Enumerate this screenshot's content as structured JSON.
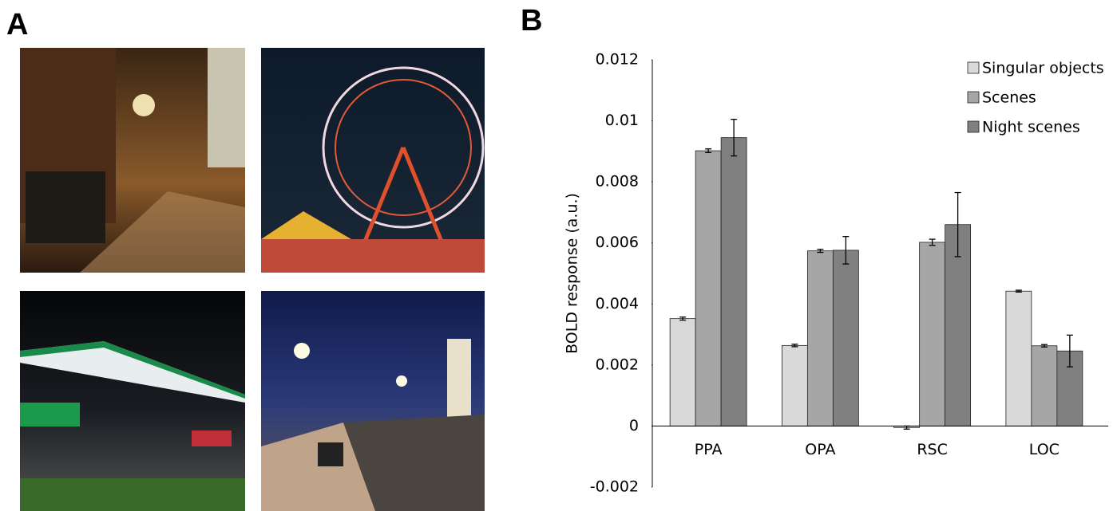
{
  "panel_labels": [
    "A",
    "B"
  ],
  "chart_data": {
    "type": "bar",
    "y_label": "BOLD response (a.u.)",
    "categories": [
      "PPA",
      "OPA",
      "RSC",
      "LOC"
    ],
    "series": [
      {
        "name": "Singular objects",
        "color": "#d9d9d9",
        "values": [
          0.00352,
          0.00264,
          -5e-05,
          0.00442
        ],
        "errors": [
          5e-05,
          4e-05,
          5e-05,
          3e-05
        ]
      },
      {
        "name": "Scenes",
        "color": "#a6a6a6",
        "values": [
          0.00902,
          0.00574,
          0.00602,
          0.00263
        ],
        "errors": [
          6e-05,
          5e-05,
          0.0001,
          4e-05
        ]
      },
      {
        "name": "Night scenes",
        "color": "#808080",
        "values": [
          0.00945,
          0.00576,
          0.0066,
          0.00246
        ],
        "errors": [
          0.0006,
          0.00045,
          0.00105,
          0.00052
        ]
      }
    ],
    "ylim": [
      -0.002,
      0.012
    ],
    "yticks": [
      -0.002,
      0,
      0.002,
      0.004,
      0.006,
      0.008,
      0.01,
      0.012
    ],
    "grid": false,
    "legend": "top-right"
  }
}
